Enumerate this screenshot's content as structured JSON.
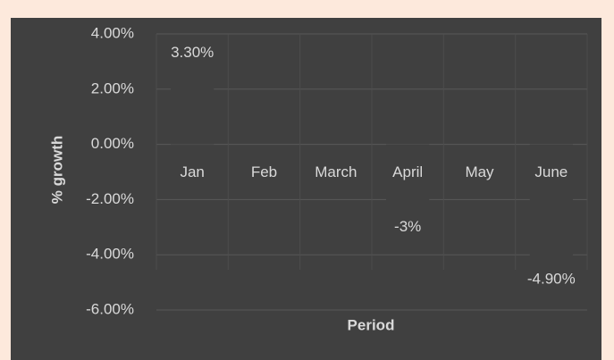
{
  "chart_data": {
    "type": "bar",
    "x_label": "Period",
    "y_label": "% growth",
    "categories": [
      "Jan",
      "Feb",
      "March",
      "April",
      "May",
      "June"
    ],
    "values": [
      3.3,
      null,
      null,
      -3,
      null,
      -4.9
    ],
    "value_labels": [
      "3.30%",
      null,
      null,
      "-3%",
      null,
      "-4.90%"
    ],
    "color": "#404040",
    "ylim": [
      -6,
      4
    ],
    "yticks": [
      {
        "value": 4,
        "label": "4.00%"
      },
      {
        "value": 2,
        "label": "2.00%"
      },
      {
        "value": 0,
        "label": "0.00%"
      },
      {
        "value": -2,
        "label": "-2.00%"
      },
      {
        "value": -4,
        "label": "-4.00%"
      },
      {
        "value": -6,
        "label": "-6.00%"
      }
    ],
    "grid": true
  }
}
